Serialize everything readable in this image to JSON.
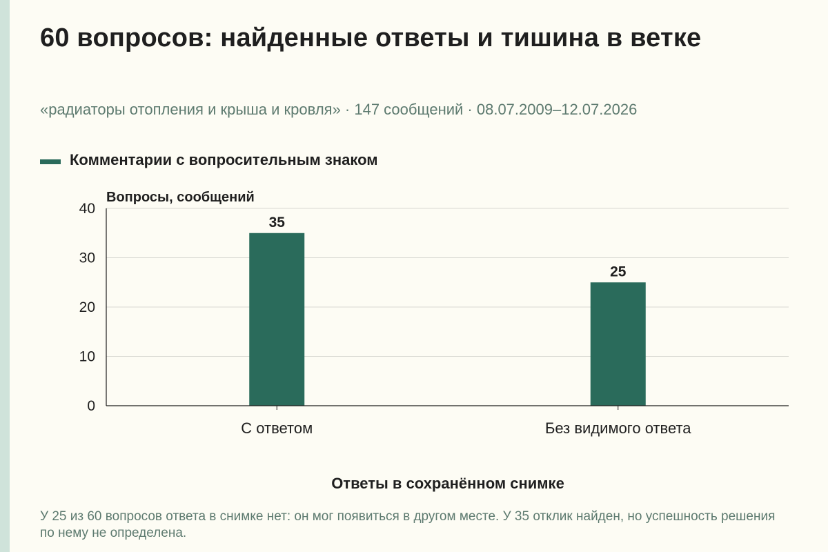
{
  "title": "60 вопросов: найденные ответы и тишина в ветке",
  "subtitle": "«радиаторы отопления и крыша и кровля» · 147 сообщений · 08.07.2009–12.07.2026",
  "footnote": "У 25 из 60 вопросов ответа в снимке нет: он мог появиться в другом месте. У 35 отклик найден, но успешность решения по нему не определена.",
  "colors": {
    "bar": "#2a6b5b",
    "muted_text": "#5d7a6f",
    "background": "#fdfcf4",
    "accent_strip": "#cfe3da"
  },
  "chart_data": {
    "type": "bar",
    "categories": [
      "С ответом",
      "Без видимого ответа"
    ],
    "series": [
      {
        "name": "Комментарии с вопросительным знаком",
        "values": [
          35,
          25
        ]
      }
    ],
    "ylabel": "Вопросы, сообщений",
    "xlabel": "Ответы в сохранённом снимке",
    "ylim": [
      0,
      40
    ],
    "yticks": [
      0,
      10,
      20,
      30,
      40
    ],
    "data_labels": [
      "35",
      "25"
    ],
    "grid": true,
    "legend": "top-left"
  }
}
